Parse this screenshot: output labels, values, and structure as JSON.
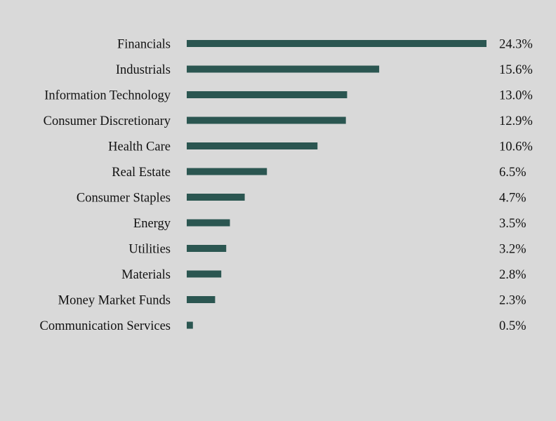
{
  "chart_data": {
    "type": "bar",
    "orientation": "horizontal",
    "categories": [
      "Financials",
      "Industrials",
      "Information Technology",
      "Consumer Discretionary",
      "Health Care",
      "Real Estate",
      "Consumer Staples",
      "Energy",
      "Utilities",
      "Materials",
      "Money Market Funds",
      "Communication Services"
    ],
    "values": [
      24.3,
      15.6,
      13.0,
      12.9,
      10.6,
      6.5,
      4.7,
      3.5,
      3.2,
      2.8,
      2.3,
      0.5
    ],
    "value_labels": [
      "24.3%",
      "15.6%",
      "13.0%",
      "12.9%",
      "10.6%",
      "6.5%",
      "4.7%",
      "3.5%",
      "3.2%",
      "2.8%",
      "2.3%",
      "0.5%"
    ],
    "xlim": [
      0,
      24.3
    ],
    "grid": false,
    "bar_color": "#2b5651",
    "background_color": "#d9d9d9"
  }
}
